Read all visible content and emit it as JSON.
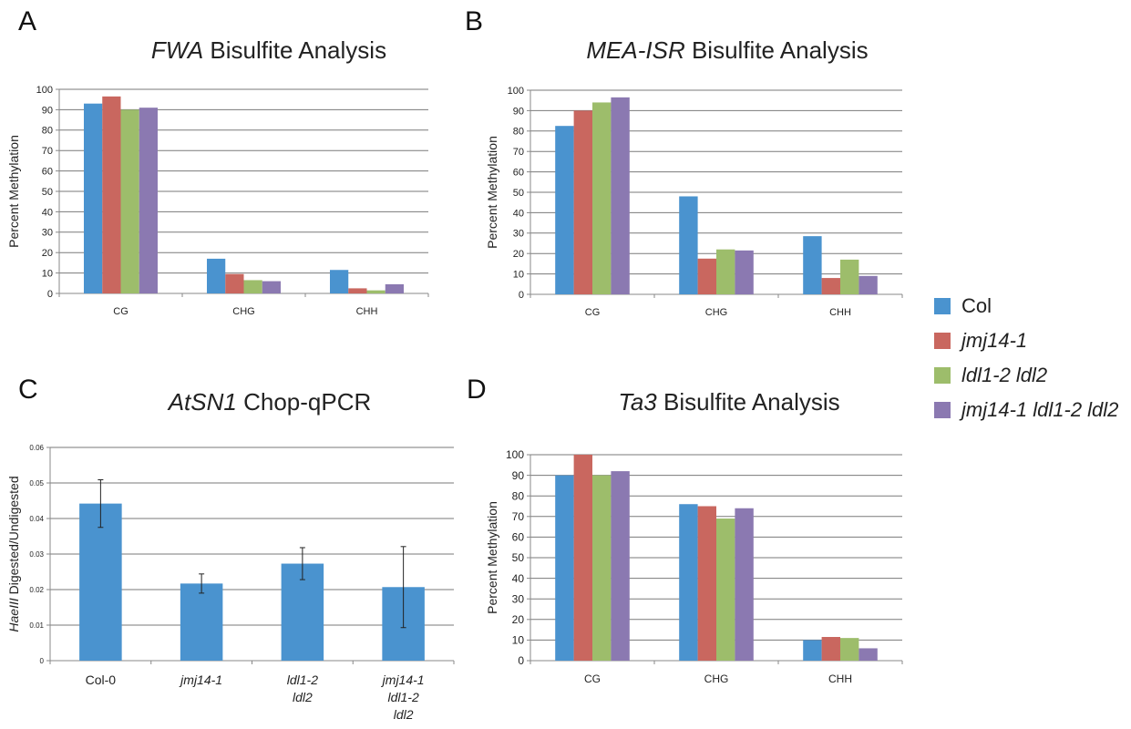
{
  "figure": {
    "colors": {
      "Col": "#4a93cf",
      "jmj14-1": "#c9675f",
      "ldl1-2 ldl2": "#9dbd6b",
      "jmj14-1 ldl1-2 ldl2": "#8b79b1",
      "axis": "#888888",
      "grid": "#7a7a7a"
    },
    "legend": [
      {
        "label": "Col",
        "italic": false
      },
      {
        "label": "jmj14-1",
        "italic": true
      },
      {
        "label": "ldl1-2 ldl2",
        "italic": true
      },
      {
        "label": "jmj14-1 ldl1-2 ldl2",
        "italic": true
      }
    ]
  },
  "chart_data": [
    {
      "panel": "A",
      "title_italic": "FWA",
      "title_rest": " Bisulfite Analysis",
      "type": "bar",
      "ylabel": "Percent Methylation",
      "ylim": [
        0,
        100
      ],
      "yticks": [
        "0",
        "10",
        "20",
        "30",
        "40",
        "50",
        "60",
        "70",
        "80",
        "90",
        "100"
      ],
      "grid": true,
      "categories": [
        "CG",
        "CHG",
        "CHH"
      ],
      "series": [
        {
          "name": "Col",
          "values": [
            93,
            17,
            11.5
          ]
        },
        {
          "name": "jmj14-1",
          "values": [
            96.5,
            9.5,
            2.5
          ]
        },
        {
          "name": "ldl1-2 ldl2",
          "values": [
            90,
            6.5,
            1.5
          ]
        },
        {
          "name": "jmj14-1 ldl1-2 ldl2",
          "values": [
            91,
            6,
            4.5
          ]
        }
      ]
    },
    {
      "panel": "B",
      "title_italic": "MEA-ISR",
      "title_rest": " Bisulfite Analysis",
      "type": "bar",
      "ylabel": "Percent Methylation",
      "ylim": [
        0,
        100
      ],
      "yticks": [
        "0",
        "10",
        "20",
        "30",
        "40",
        "50",
        "60",
        "70",
        "80",
        "90",
        "100"
      ],
      "grid": true,
      "categories": [
        "CG",
        "CHG",
        "CHH"
      ],
      "series": [
        {
          "name": "Col",
          "values": [
            82.5,
            48,
            28.5
          ]
        },
        {
          "name": "jmj14-1",
          "values": [
            90,
            17.5,
            8
          ]
        },
        {
          "name": "ldl1-2 ldl2",
          "values": [
            94,
            22,
            17
          ]
        },
        {
          "name": "jmj14-1 ldl1-2 ldl2",
          "values": [
            96.5,
            21.5,
            9
          ]
        }
      ]
    },
    {
      "panel": "C",
      "title_italic": "AtSN1",
      "title_rest": " Chop-qPCR",
      "type": "bar",
      "ylabel_italic": "HaeIII",
      "ylabel_rest": " Digested/Undigested",
      "ylim": [
        0,
        0.06
      ],
      "yticks": [
        "0",
        "0.01",
        "0.02",
        "0.03",
        "0.04",
        "0.05",
        "0.06"
      ],
      "grid": true,
      "categories": [
        [
          "Col-0"
        ],
        [
          "jmj14-1"
        ],
        [
          "ldl1-2",
          "ldl2"
        ],
        [
          "jmj14-1",
          "ldl1-2",
          "ldl2"
        ]
      ],
      "categories_italic": [
        false,
        true,
        true,
        true
      ],
      "values": [
        0.0442,
        0.0217,
        0.0273,
        0.0207
      ],
      "errors": [
        0.0067,
        0.0027,
        0.0045,
        0.0114
      ]
    },
    {
      "panel": "D",
      "title_italic": "Ta3",
      "title_rest": " Bisulfite Analysis",
      "type": "bar",
      "ylabel": "Percent Methylation",
      "ylim": [
        0,
        100
      ],
      "yticks": [
        "0",
        "10",
        "20",
        "30",
        "40",
        "50",
        "60",
        "70",
        "80",
        "90",
        "100"
      ],
      "grid": true,
      "categories": [
        "CG",
        "CHG",
        "CHH"
      ],
      "series": [
        {
          "name": "Col",
          "values": [
            90,
            76,
            10
          ]
        },
        {
          "name": "jmj14-1",
          "values": [
            100,
            75,
            11.5
          ]
        },
        {
          "name": "ldl1-2 ldl2",
          "values": [
            90,
            69,
            11
          ]
        },
        {
          "name": "jmj14-1 ldl1-2 ldl2",
          "values": [
            92,
            74,
            6
          ]
        }
      ]
    }
  ]
}
